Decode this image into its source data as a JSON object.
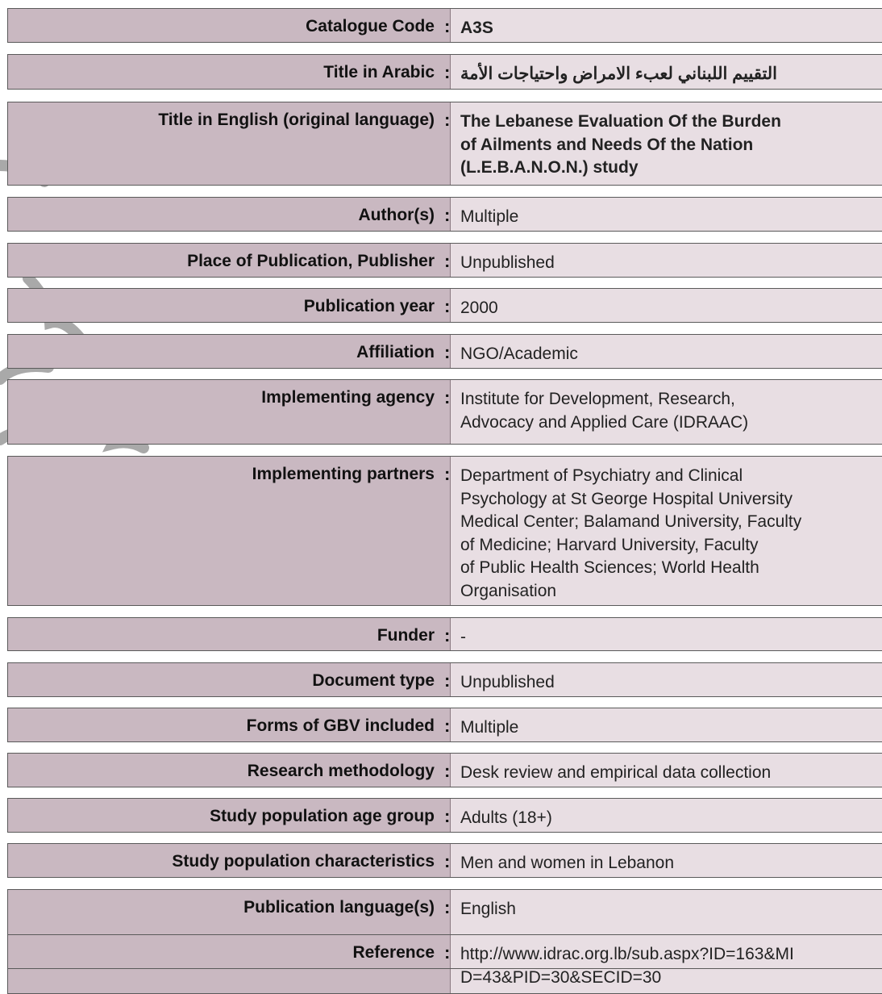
{
  "separator": ":",
  "rows": [
    {
      "label": "Catalogue Code",
      "value": [
        "A3S"
      ]
    },
    {
      "label": "Title in Arabic",
      "value": [
        "التقييم اللبناني لعبء الامراض واحتياجات الأمة"
      ]
    },
    {
      "label": "Title in English (original language)",
      "value": [
        "The Lebanese Evaluation Of the Burden",
        "of Ailments and Needs Of the Nation",
        "(L.E.B.A.N.O.N.) study"
      ]
    },
    {
      "label": "Author(s)",
      "value": [
        "Multiple"
      ]
    },
    {
      "label": "Place of Publication, Publisher",
      "value": [
        "Unpublished"
      ]
    },
    {
      "label": "Publication year",
      "value": [
        "2000"
      ]
    },
    {
      "label": "Affiliation",
      "value": [
        "NGO/Academic"
      ]
    },
    {
      "label": "Implementing agency",
      "value": [
        "Institute for Development, Research,",
        "Advocacy and Applied Care (IDRAAC)"
      ]
    },
    {
      "label": "Implementing partners",
      "value": [
        "Department of Psychiatry and Clinical",
        "Psychology at St George Hospital University",
        "Medical Center; Balamand University, Faculty",
        "of Medicine; Harvard University, Faculty",
        "of Public Health Sciences; World Health",
        "Organisation"
      ]
    },
    {
      "label": "Funder",
      "value": [
        "-"
      ]
    },
    {
      "label": "Document type",
      "value": [
        "Unpublished"
      ]
    },
    {
      "label": "Forms of GBV included",
      "value": [
        "Multiple"
      ]
    },
    {
      "label": "Research methodology",
      "value": [
        "Desk review and empirical data collection"
      ]
    },
    {
      "label": "Study population age group",
      "value": [
        "Adults (18+)"
      ]
    },
    {
      "label": "Study population characteristics",
      "value": [
        "Men and women in Lebanon"
      ]
    },
    {
      "label": "Publication language(s)",
      "value": [
        "English"
      ]
    },
    {
      "label": "Reference",
      "value": [
        "http://www.idrac.org.lb/sub.aspx?ID=163&MI",
        "D=43&PID=30&SECID=30"
      ]
    }
  ]
}
